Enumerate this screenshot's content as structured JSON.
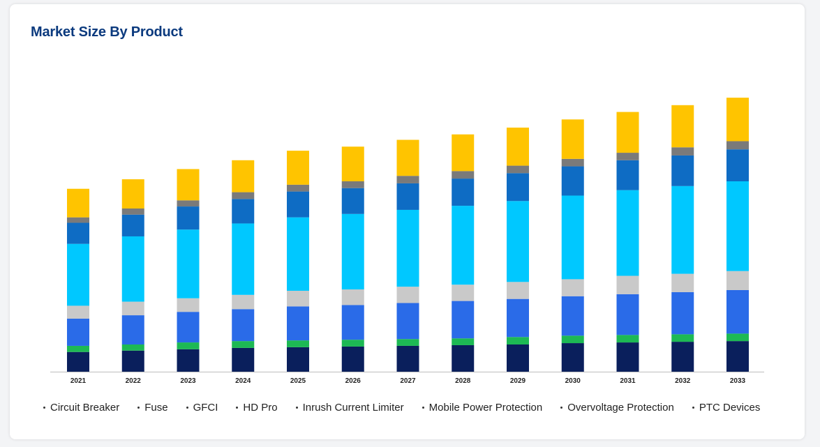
{
  "title": "Market Size By Product",
  "chart_data": {
    "type": "bar",
    "stacked": true,
    "title": "Market Size By Product",
    "xlabel": "",
    "ylabel": "",
    "ylim": [
      0,
      400
    ],
    "grid": false,
    "legend_position": "bottom",
    "categories": [
      "2021",
      "2022",
      "2023",
      "2024",
      "2025",
      "2026",
      "2027",
      "2028",
      "2029",
      "2030",
      "2031",
      "2032",
      "2033"
    ],
    "series": [
      {
        "name": "Circuit Breaker",
        "color": "#0a1f5c",
        "values": [
          29,
          31,
          33,
          35,
          36,
          37,
          38,
          39,
          40,
          42,
          43,
          44,
          45
        ]
      },
      {
        "name": "Fuse",
        "color": "#1db954",
        "values": [
          9,
          9,
          10,
          10,
          10,
          10,
          10,
          10,
          11,
          11,
          11,
          11,
          11
        ]
      },
      {
        "name": "GFCI",
        "color": "#2a6be8",
        "values": [
          40,
          43,
          45,
          47,
          50,
          51,
          53,
          55,
          56,
          58,
          60,
          62,
          64
        ]
      },
      {
        "name": "HD Pro",
        "color": "#c9c9c9",
        "values": [
          19,
          20,
          20,
          21,
          23,
          23,
          24,
          24,
          25,
          25,
          27,
          27,
          28
        ]
      },
      {
        "name": "Inrush Current Limiter",
        "color": "#00c8ff",
        "values": [
          91,
          96,
          101,
          105,
          108,
          111,
          113,
          116,
          119,
          123,
          126,
          129,
          132
        ]
      },
      {
        "name": "Mobile Power Protection",
        "color": "#0e6cc4",
        "values": [
          31,
          32,
          34,
          36,
          38,
          38,
          39,
          40,
          41,
          43,
          44,
          45,
          47
        ]
      },
      {
        "name": "Overvoltage Protection",
        "color": "#7a7a7a",
        "values": [
          8,
          9,
          9,
          10,
          10,
          10,
          11,
          11,
          11,
          11,
          11,
          12,
          12
        ]
      },
      {
        "name": "PTC Devices",
        "color": "#ffc400",
        "values": [
          42,
          43,
          46,
          47,
          50,
          51,
          53,
          54,
          56,
          58,
          60,
          62,
          64
        ]
      }
    ]
  }
}
